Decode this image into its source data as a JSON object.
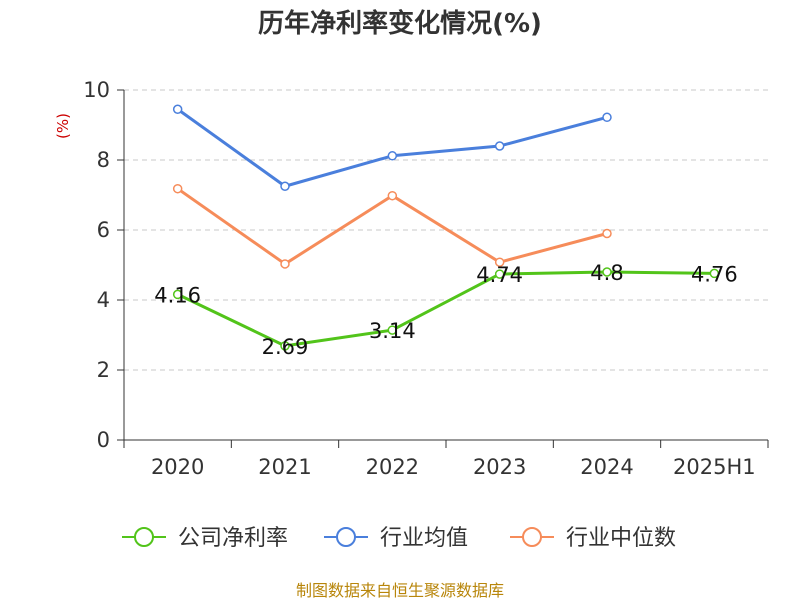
{
  "chart_data": {
    "type": "line",
    "title": "历年净利率变化情况(%)",
    "ylabel": "(%)",
    "xlabel": "",
    "categories": [
      "2020",
      "2021",
      "2022",
      "2023",
      "2024",
      "2025H1"
    ],
    "ylim": [
      0,
      10
    ],
    "yticks": [
      0,
      2,
      4,
      6,
      8,
      10
    ],
    "grid": "horizontal-dashed",
    "legend_position": "bottom",
    "series": [
      {
        "name": "公司净利率",
        "color": "#52c41a",
        "values": [
          4.16,
          2.69,
          3.14,
          4.74,
          4.8,
          4.76
        ],
        "labels": [
          "4.16",
          "2.69",
          "3.14",
          "4.74",
          "4.8",
          "4.76"
        ]
      },
      {
        "name": "行业均值",
        "color": "#4a7fdc",
        "values": [
          9.45,
          7.25,
          8.12,
          8.4,
          9.22,
          null
        ]
      },
      {
        "name": "行业中位数",
        "color": "#f68c5a",
        "values": [
          7.18,
          5.03,
          6.98,
          5.08,
          5.9,
          null
        ]
      }
    ]
  },
  "source": "制图数据来自恒生聚源数据库"
}
